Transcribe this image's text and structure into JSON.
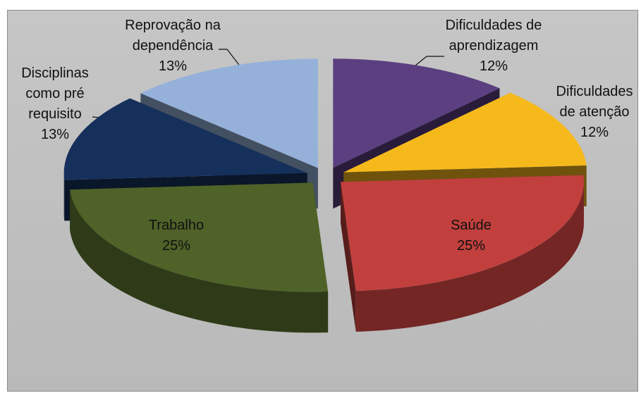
{
  "chart_data": {
    "type": "pie",
    "categories": [
      "Dificuldades de aprendizagem",
      "Dificuldades de atenção",
      "Saúde",
      "Trabalho",
      "Disciplinas como pré requisito",
      "Reprovação na dependência"
    ],
    "values": [
      12,
      12,
      25,
      25,
      13,
      13
    ],
    "value_labels": [
      "12%",
      "12%",
      "25%",
      "25%",
      "13%",
      "13%"
    ],
    "colors": [
      "#5b3f80",
      "#f6b91c",
      "#c1403d",
      "#4f6228",
      "#16305c",
      "#95b1da"
    ]
  }
}
